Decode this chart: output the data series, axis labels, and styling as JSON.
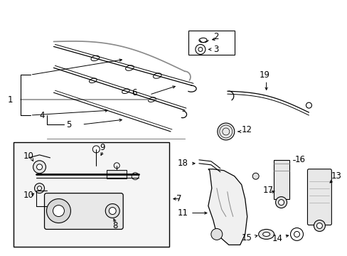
{
  "bg_color": "#ffffff",
  "lc": "#000000",
  "gc": "#cccccc",
  "figsize": [
    4.89,
    3.6
  ],
  "dpi": 100,
  "fs_label": 8.5
}
